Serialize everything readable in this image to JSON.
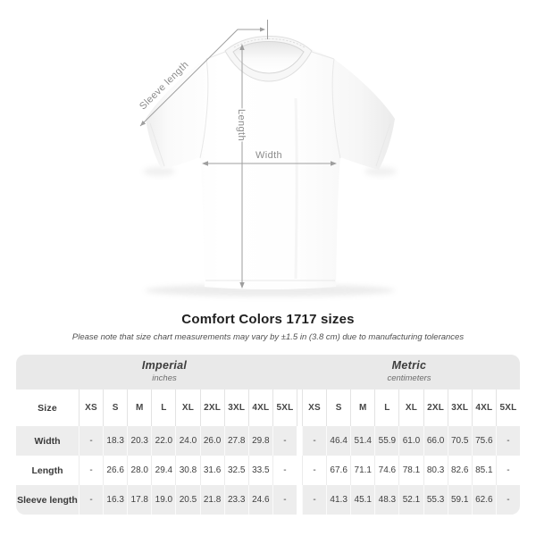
{
  "diagram": {
    "sleeve_label": "Sleeve length",
    "length_label": "Length",
    "width_label": "Width"
  },
  "title": "Comfort Colors 1717 sizes",
  "note": "Please note that size chart measurements may vary by ±1.5 in (3.8 cm) due to manufacturing tolerances",
  "size_chart": {
    "size_column_header": "Size",
    "groups": [
      {
        "name": "Imperial",
        "unit": "inches"
      },
      {
        "name": "Metric",
        "unit": "centimeters"
      }
    ],
    "sizes": [
      "XS",
      "S",
      "M",
      "L",
      "XL",
      "2XL",
      "3XL",
      "4XL",
      "5XL"
    ],
    "rows": [
      {
        "label": "Width",
        "imperial": [
          "-",
          "18.3",
          "20.3",
          "22.0",
          "24.0",
          "26.0",
          "27.8",
          "29.8",
          "-"
        ],
        "metric": [
          "-",
          "46.4",
          "51.4",
          "55.9",
          "61.0",
          "66.0",
          "70.5",
          "75.6",
          "-"
        ]
      },
      {
        "label": "Length",
        "imperial": [
          "-",
          "26.6",
          "28.0",
          "29.4",
          "30.8",
          "31.6",
          "32.5",
          "33.5",
          "-"
        ],
        "metric": [
          "-",
          "67.6",
          "71.1",
          "74.6",
          "78.1",
          "80.3",
          "82.6",
          "85.1",
          "-"
        ]
      },
      {
        "label": "Sleeve length",
        "imperial": [
          "-",
          "16.3",
          "17.8",
          "19.0",
          "20.5",
          "21.8",
          "23.3",
          "24.6",
          "-"
        ],
        "metric": [
          "-",
          "41.3",
          "45.1",
          "48.3",
          "52.1",
          "55.3",
          "59.1",
          "62.6",
          "-"
        ]
      }
    ]
  },
  "colors": {
    "band": "#e9e9e9",
    "stripe": "#ededed",
    "row_white": "#ffffff",
    "annotation_line": "#9e9e9e",
    "annotation_text": "#8b8b8b",
    "table_text": "#3f3f3f",
    "title_text": "#1f1f1f",
    "note_text": "#4f4f4f"
  }
}
